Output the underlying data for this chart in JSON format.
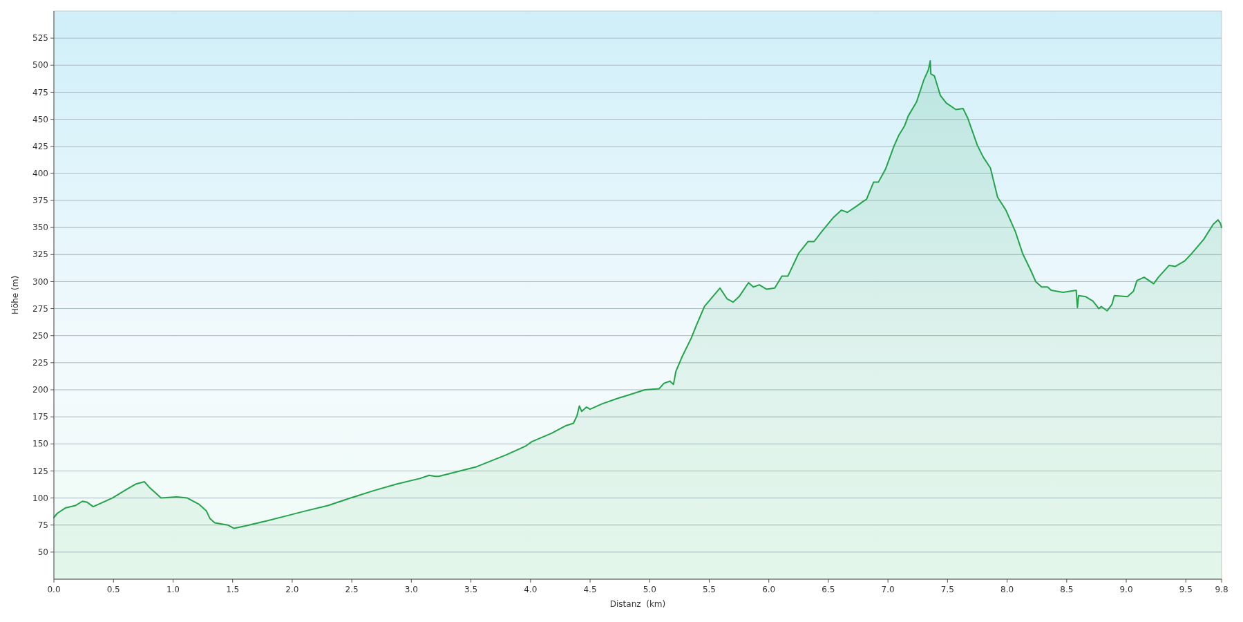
{
  "chart_data": {
    "type": "area",
    "xlabel": "Distanz  (km)",
    "ylabel": "Höhe (m)",
    "xlim": [
      0,
      9.8
    ],
    "ylim": [
      25,
      550
    ],
    "xticks": [
      {
        "value": 0,
        "label": "0.0"
      },
      0.5,
      {
        "value": 1,
        "label": "1.0"
      },
      1.5,
      {
        "value": 2,
        "label": "2.0"
      },
      2.5,
      {
        "value": 3,
        "label": "3.0"
      },
      3.5,
      {
        "value": 4,
        "label": "4.0"
      },
      4.5,
      {
        "value": 5,
        "label": "5.0"
      },
      5.5,
      {
        "value": 6,
        "label": "6.0"
      },
      6.5,
      {
        "value": 7,
        "label": "7.0"
      },
      7.5,
      {
        "value": 8,
        "label": "8.0"
      },
      8.5,
      {
        "value": 9,
        "label": "9.0"
      },
      9.5,
      9.8
    ],
    "yticks": [
      50,
      75,
      100,
      125,
      150,
      175,
      200,
      225,
      250,
      275,
      300,
      325,
      350,
      375,
      400,
      425,
      450,
      475,
      500,
      525
    ],
    "grid": "y",
    "series": [
      {
        "color": "#22a34a",
        "x": [
          0,
          0.03,
          0.1,
          0.18,
          0.24,
          0.28,
          0.33,
          0.41,
          0.49,
          0.61,
          0.69,
          0.76,
          0.8,
          0.9,
          1.03,
          1.12,
          1.22,
          1.28,
          1.31,
          1.35,
          1.46,
          1.51,
          1.6,
          1.79,
          1.97,
          2.11,
          2.3,
          2.49,
          2.69,
          2.88,
          3.07,
          3.15,
          3.2,
          3.23,
          3.55,
          3.8,
          3.96,
          4.01,
          4.18,
          4.3,
          4.36,
          4.39,
          4.41,
          4.43,
          4.47,
          4.5,
          4.6,
          4.73,
          4.82,
          4.96,
          5.08,
          5.12,
          5.17,
          5.2,
          5.22,
          5.27,
          5.35,
          5.39,
          5.46,
          5.59,
          5.65,
          5.7,
          5.75,
          5.83,
          5.87,
          5.92,
          5.98,
          6.05,
          6.11,
          6.16,
          6.25,
          6.33,
          6.38,
          6.45,
          6.54,
          6.61,
          6.66,
          6.74,
          6.79,
          6.82,
          6.88,
          6.92,
          6.98,
          7.05,
          7.09,
          7.14,
          7.17,
          7.24,
          7.3,
          7.34,
          7.355,
          7.36,
          7.39,
          7.44,
          7.49,
          7.57,
          7.63,
          7.67,
          7.75,
          7.8,
          7.86,
          7.92,
          7.99,
          8.07,
          8.13,
          8.2,
          8.24,
          8.29,
          8.34,
          8.37,
          8.47,
          8.58,
          8.59,
          8.6,
          8.66,
          8.72,
          8.77,
          8.79,
          8.84,
          8.88,
          8.9,
          9.01,
          9.06,
          9.09,
          9.15,
          9.19,
          9.23,
          9.27,
          9.36,
          9.41,
          9.49,
          9.55,
          9.65,
          9.73,
          9.77,
          9.79,
          9.8
        ],
        "values": [
          82,
          86,
          91,
          93,
          97,
          96,
          92,
          96,
          100,
          108,
          113,
          115,
          110,
          100,
          101,
          100,
          94,
          88,
          81,
          77,
          75,
          72,
          74,
          79,
          84,
          88,
          93,
          100,
          107,
          113,
          118,
          121,
          120,
          120,
          129,
          140,
          148,
          152,
          160,
          167,
          169,
          176,
          185,
          180,
          184,
          182,
          187,
          192,
          195,
          200,
          201,
          206,
          208,
          205,
          217,
          230,
          248,
          259,
          277,
          294,
          284,
          281,
          286,
          299,
          295,
          297,
          293,
          294,
          305,
          305,
          326,
          337,
          337,
          347,
          359,
          366,
          364,
          370,
          374,
          376,
          392,
          392,
          404,
          425,
          435,
          444,
          453,
          466,
          486,
          496,
          504,
          492,
          490,
          472,
          465,
          459,
          460,
          451,
          426,
          415,
          405,
          378,
          366,
          346,
          326,
          310,
          300,
          295,
          295,
          292,
          290,
          292,
          276,
          287,
          286,
          282,
          275,
          277,
          273,
          279,
          287,
          286,
          291,
          301,
          304,
          301,
          298,
          304,
          315,
          314,
          319,
          326,
          339,
          353,
          357,
          354,
          350
        ]
      }
    ]
  }
}
